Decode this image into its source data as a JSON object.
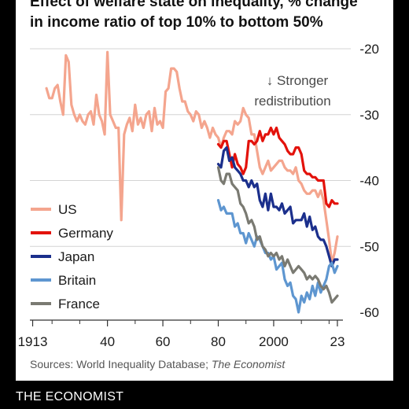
{
  "title_lines": [
    "Effect of welfare state on inequality, % change",
    "in income ratio of top 10% to bottom 50%"
  ],
  "annotation": [
    "↓ Stronger",
    "redistribution"
  ],
  "source": {
    "prefix": "Sources: World Inequality Database; ",
    "italic": "The Economist"
  },
  "footer": "THE ECONOMIST",
  "chart_data": {
    "type": "line",
    "title": "Effect of welfare state on inequality, % change in income ratio of top 10% to bottom 50%",
    "xlabel": "",
    "ylabel": "",
    "xlim": [
      1912,
      2025
    ],
    "ylim": [
      -60,
      -20
    ],
    "y_axis_side": "right",
    "grid": "horizontal",
    "x_ticks": [
      {
        "value": 1913,
        "label": "1913"
      },
      {
        "value": 1940,
        "label": "40"
      },
      {
        "value": 1960,
        "label": "60"
      },
      {
        "value": 1980,
        "label": "80"
      },
      {
        "value": 2000,
        "label": "2000"
      },
      {
        "value": 2023,
        "label": "23"
      }
    ],
    "y_ticks": [
      {
        "value": -20,
        "label": "-20"
      },
      {
        "value": -30,
        "label": "-30"
      },
      {
        "value": -40,
        "label": "-40"
      },
      {
        "value": -50,
        "label": "-50"
      },
      {
        "value": -60,
        "label": "-60"
      }
    ],
    "legend_position": "left",
    "series": [
      {
        "name": "US",
        "color": "#f4a58e",
        "points": [
          [
            1918,
            -26
          ],
          [
            1919,
            -27.5
          ],
          [
            1920,
            -27.5
          ],
          [
            1921,
            -26
          ],
          [
            1922,
            -25.5
          ],
          [
            1923,
            -28
          ],
          [
            1924,
            -30
          ],
          [
            1925,
            -21
          ],
          [
            1926,
            -22
          ],
          [
            1927,
            -28.5
          ],
          [
            1928,
            -30
          ],
          [
            1929,
            -31
          ],
          [
            1930,
            -30
          ],
          [
            1931,
            -31
          ],
          [
            1932,
            -31.5
          ],
          [
            1933,
            -30
          ],
          [
            1934,
            -29.5
          ],
          [
            1935,
            -31.5
          ],
          [
            1936,
            -27
          ],
          [
            1937,
            -30
          ],
          [
            1938,
            -31
          ],
          [
            1939,
            -33
          ],
          [
            1940,
            -20.5
          ],
          [
            1941,
            -30
          ],
          [
            1942,
            -31
          ],
          [
            1943,
            -32
          ],
          [
            1944,
            -32
          ],
          [
            1945,
            -46
          ],
          [
            1946,
            -33
          ],
          [
            1947,
            -31.5
          ],
          [
            1948,
            -30.5
          ],
          [
            1949,
            -32.5
          ],
          [
            1950,
            -28.5
          ],
          [
            1951,
            -31.5
          ],
          [
            1952,
            -30.5
          ],
          [
            1953,
            -32
          ],
          [
            1954,
            -30
          ],
          [
            1955,
            -29.5
          ],
          [
            1956,
            -32.5
          ],
          [
            1957,
            -29
          ],
          [
            1958,
            -31.5
          ],
          [
            1959,
            -31
          ],
          [
            1960,
            -32
          ],
          [
            1961,
            -26.5
          ],
          [
            1962,
            -26
          ],
          [
            1963,
            -23
          ],
          [
            1964,
            -23
          ],
          [
            1965,
            -23.5
          ],
          [
            1966,
            -26
          ],
          [
            1967,
            -28
          ],
          [
            1968,
            -28
          ],
          [
            1969,
            -29.5
          ],
          [
            1970,
            -30
          ],
          [
            1971,
            -31
          ],
          [
            1972,
            -29.5
          ],
          [
            1973,
            -30
          ],
          [
            1974,
            -32
          ],
          [
            1975,
            -31
          ],
          [
            1976,
            -32
          ],
          [
            1977,
            -33.5
          ],
          [
            1978,
            -32
          ],
          [
            1979,
            -33
          ],
          [
            1980,
            -33.5
          ],
          [
            1981,
            -35
          ],
          [
            1982,
            -33.5
          ],
          [
            1983,
            -32.5
          ],
          [
            1984,
            -32.5
          ],
          [
            1985,
            -33
          ],
          [
            1986,
            -31
          ],
          [
            1987,
            -31.5
          ],
          [
            1988,
            -31
          ],
          [
            1989,
            -29
          ],
          [
            1990,
            -30
          ],
          [
            1991,
            -30.5
          ],
          [
            1992,
            -33
          ],
          [
            1993,
            -33
          ],
          [
            1994,
            -35.5
          ],
          [
            1995,
            -38
          ],
          [
            1996,
            -39
          ],
          [
            1997,
            -38
          ],
          [
            1998,
            -37
          ],
          [
            1999,
            -38.5
          ],
          [
            2000,
            -38
          ],
          [
            2001,
            -37.5
          ],
          [
            2002,
            -37
          ],
          [
            2003,
            -37
          ],
          [
            2004,
            -38
          ],
          [
            2005,
            -38.5
          ],
          [
            2006,
            -38.5
          ],
          [
            2007,
            -39
          ],
          [
            2008,
            -38
          ],
          [
            2009,
            -40
          ],
          [
            2010,
            -40.5
          ],
          [
            2011,
            -41.5
          ],
          [
            2012,
            -42
          ],
          [
            2013,
            -42
          ],
          [
            2014,
            -41.5
          ],
          [
            2015,
            -41.5
          ],
          [
            2016,
            -42.5
          ],
          [
            2017,
            -41.5
          ],
          [
            2018,
            -43
          ],
          [
            2019,
            -46
          ],
          [
            2020,
            -49
          ],
          [
            2021,
            -52.5
          ],
          [
            2022,
            -51
          ],
          [
            2023,
            -48.5
          ]
        ]
      },
      {
        "name": "Germany",
        "color": "#e3120b",
        "points": [
          [
            1980,
            -34.5
          ],
          [
            1981,
            -35
          ],
          [
            1982,
            -34
          ],
          [
            1983,
            -34
          ],
          [
            1984,
            -36
          ],
          [
            1985,
            -38
          ],
          [
            1986,
            -36
          ],
          [
            1987,
            -37.5
          ],
          [
            1988,
            -38
          ],
          [
            1989,
            -39
          ],
          [
            1990,
            -38
          ],
          [
            1991,
            -34
          ],
          [
            1992,
            -34
          ],
          [
            1993,
            -34.5
          ],
          [
            1994,
            -34
          ],
          [
            1995,
            -32.5
          ],
          [
            1996,
            -34
          ],
          [
            1997,
            -33
          ],
          [
            1998,
            -33
          ],
          [
            1999,
            -32
          ],
          [
            2000,
            -33
          ],
          [
            2001,
            -32
          ],
          [
            2002,
            -33.5
          ],
          [
            2003,
            -34
          ],
          [
            2004,
            -34.5
          ],
          [
            2005,
            -35.5
          ],
          [
            2006,
            -36
          ],
          [
            2007,
            -36
          ],
          [
            2008,
            -35
          ],
          [
            2009,
            -35
          ],
          [
            2010,
            -36
          ],
          [
            2011,
            -38.5
          ],
          [
            2012,
            -39
          ],
          [
            2013,
            -39
          ],
          [
            2014,
            -39.5
          ],
          [
            2015,
            -39.5
          ],
          [
            2016,
            -40
          ],
          [
            2017,
            -40
          ],
          [
            2018,
            -40
          ],
          [
            2019,
            -43.5
          ],
          [
            2020,
            -44
          ],
          [
            2021,
            -43
          ],
          [
            2022,
            -43.5
          ],
          [
            2023,
            -43.5
          ]
        ]
      },
      {
        "name": "Japan",
        "color": "#1b2f8c",
        "points": [
          [
            1980,
            -37.5
          ],
          [
            1981,
            -38
          ],
          [
            1982,
            -35.5
          ],
          [
            1983,
            -35
          ],
          [
            1984,
            -37
          ],
          [
            1985,
            -36.5
          ],
          [
            1986,
            -38
          ],
          [
            1987,
            -38.5
          ],
          [
            1988,
            -39
          ],
          [
            1989,
            -40
          ],
          [
            1990,
            -40
          ],
          [
            1991,
            -41
          ],
          [
            1992,
            -40
          ],
          [
            1993,
            -41
          ],
          [
            1994,
            -40.5
          ],
          [
            1995,
            -43
          ],
          [
            1996,
            -44
          ],
          [
            1997,
            -42
          ],
          [
            1998,
            -44.5
          ],
          [
            1999,
            -42
          ],
          [
            2000,
            -44
          ],
          [
            2001,
            -44
          ],
          [
            2002,
            -44.5
          ],
          [
            2003,
            -43.5
          ],
          [
            2004,
            -45
          ],
          [
            2005,
            -44.5
          ],
          [
            2006,
            -44
          ],
          [
            2007,
            -46.5
          ],
          [
            2008,
            -46
          ],
          [
            2009,
            -46
          ],
          [
            2010,
            -46
          ],
          [
            2011,
            -45
          ],
          [
            2012,
            -47
          ],
          [
            2013,
            -45.5
          ],
          [
            2014,
            -47.5
          ],
          [
            2015,
            -47
          ],
          [
            2016,
            -48.5
          ],
          [
            2017,
            -49
          ],
          [
            2018,
            -49
          ],
          [
            2019,
            -50
          ],
          [
            2020,
            -51.5
          ],
          [
            2021,
            -53
          ],
          [
            2022,
            -52
          ],
          [
            2023,
            -52
          ]
        ]
      },
      {
        "name": "Britain",
        "color": "#5e96d0",
        "points": [
          [
            1980,
            -43
          ],
          [
            1981,
            -44.5
          ],
          [
            1982,
            -44
          ],
          [
            1983,
            -45
          ],
          [
            1984,
            -45
          ],
          [
            1985,
            -45
          ],
          [
            1986,
            -47
          ],
          [
            1987,
            -46.5
          ],
          [
            1988,
            -48
          ],
          [
            1989,
            -48
          ],
          [
            1990,
            -49.5
          ],
          [
            1991,
            -48
          ],
          [
            1992,
            -49
          ],
          [
            1993,
            -50
          ],
          [
            1994,
            -48.5
          ],
          [
            1995,
            -49
          ],
          [
            1996,
            -50
          ],
          [
            1997,
            -51
          ],
          [
            1998,
            -51
          ],
          [
            1999,
            -52
          ],
          [
            2000,
            -51.5
          ],
          [
            2001,
            -53.5
          ],
          [
            2002,
            -53
          ],
          [
            2003,
            -52.5
          ],
          [
            2004,
            -55
          ],
          [
            2005,
            -56
          ],
          [
            2006,
            -55.5
          ],
          [
            2007,
            -57.5
          ],
          [
            2008,
            -58
          ],
          [
            2009,
            -60
          ],
          [
            2010,
            -57.5
          ],
          [
            2011,
            -58.5
          ],
          [
            2012,
            -57
          ],
          [
            2013,
            -58
          ],
          [
            2014,
            -56
          ],
          [
            2015,
            -57.5
          ],
          [
            2016,
            -55.5
          ],
          [
            2017,
            -57
          ],
          [
            2018,
            -56
          ],
          [
            2019,
            -55
          ],
          [
            2020,
            -53
          ],
          [
            2021,
            -52.5
          ],
          [
            2022,
            -54
          ],
          [
            2023,
            -53
          ]
        ]
      },
      {
        "name": "France",
        "color": "#7a7a72",
        "points": [
          [
            1980,
            -38
          ],
          [
            1981,
            -40
          ],
          [
            1982,
            -40.5
          ],
          [
            1983,
            -39
          ],
          [
            1984,
            -39
          ],
          [
            1985,
            -40.5
          ],
          [
            1986,
            -41
          ],
          [
            1987,
            -41.5
          ],
          [
            1988,
            -43.5
          ],
          [
            1989,
            -44
          ],
          [
            1990,
            -45
          ],
          [
            1991,
            -46.5
          ],
          [
            1992,
            -46
          ],
          [
            1993,
            -47
          ],
          [
            1994,
            -49
          ],
          [
            1995,
            -48.5
          ],
          [
            1996,
            -50
          ],
          [
            1997,
            -50.5
          ],
          [
            1998,
            -51.5
          ],
          [
            1999,
            -51
          ],
          [
            2000,
            -51.5
          ],
          [
            2001,
            -51
          ],
          [
            2002,
            -52
          ],
          [
            2003,
            -51.5
          ],
          [
            2004,
            -53
          ],
          [
            2005,
            -52
          ],
          [
            2006,
            -53
          ],
          [
            2007,
            -54
          ],
          [
            2008,
            -53.5
          ],
          [
            2009,
            -53
          ],
          [
            2010,
            -53.5
          ],
          [
            2011,
            -54
          ],
          [
            2012,
            -55
          ],
          [
            2013,
            -54.5
          ],
          [
            2014,
            -55
          ],
          [
            2015,
            -54.5
          ],
          [
            2016,
            -55
          ],
          [
            2017,
            -56
          ],
          [
            2018,
            -56.5
          ],
          [
            2019,
            -56
          ],
          [
            2020,
            -57
          ],
          [
            2021,
            -58.5
          ],
          [
            2022,
            -58
          ],
          [
            2023,
            -57.5
          ]
        ]
      }
    ]
  }
}
